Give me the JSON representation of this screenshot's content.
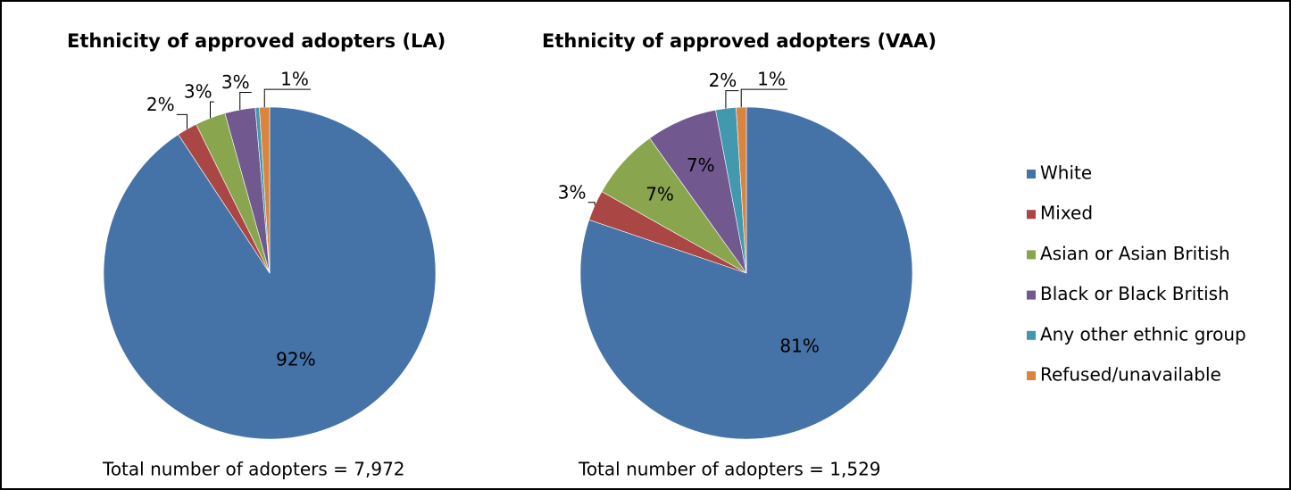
{
  "legend": {
    "categories": [
      "White",
      "Mixed",
      "Asian or Asian British",
      "Black or Black British",
      "Any other ethnic group",
      "Refused/unavailable"
    ],
    "colors": [
      "#4572a7",
      "#aa4643",
      "#89a54e",
      "#71588f",
      "#4198af",
      "#db843d"
    ]
  },
  "chart_data": [
    {
      "type": "pie",
      "title": "Ethnicity of approved adopters (LA)",
      "note": "Total number of adopters = 7,972",
      "values": [
        92,
        2,
        3,
        3,
        0.4,
        1
      ],
      "value_labels": [
        "92%",
        "2%",
        "3%",
        "3%",
        null,
        "1%"
      ]
    },
    {
      "type": "pie",
      "title": "Ethnicity of approved adopters (VAA)",
      "note": "Total number of adopters = 1,529",
      "values": [
        81,
        3,
        7,
        7,
        2,
        1
      ],
      "value_labels": [
        "81%",
        "3%",
        "7%",
        "7%",
        "2%",
        "1%"
      ]
    }
  ]
}
